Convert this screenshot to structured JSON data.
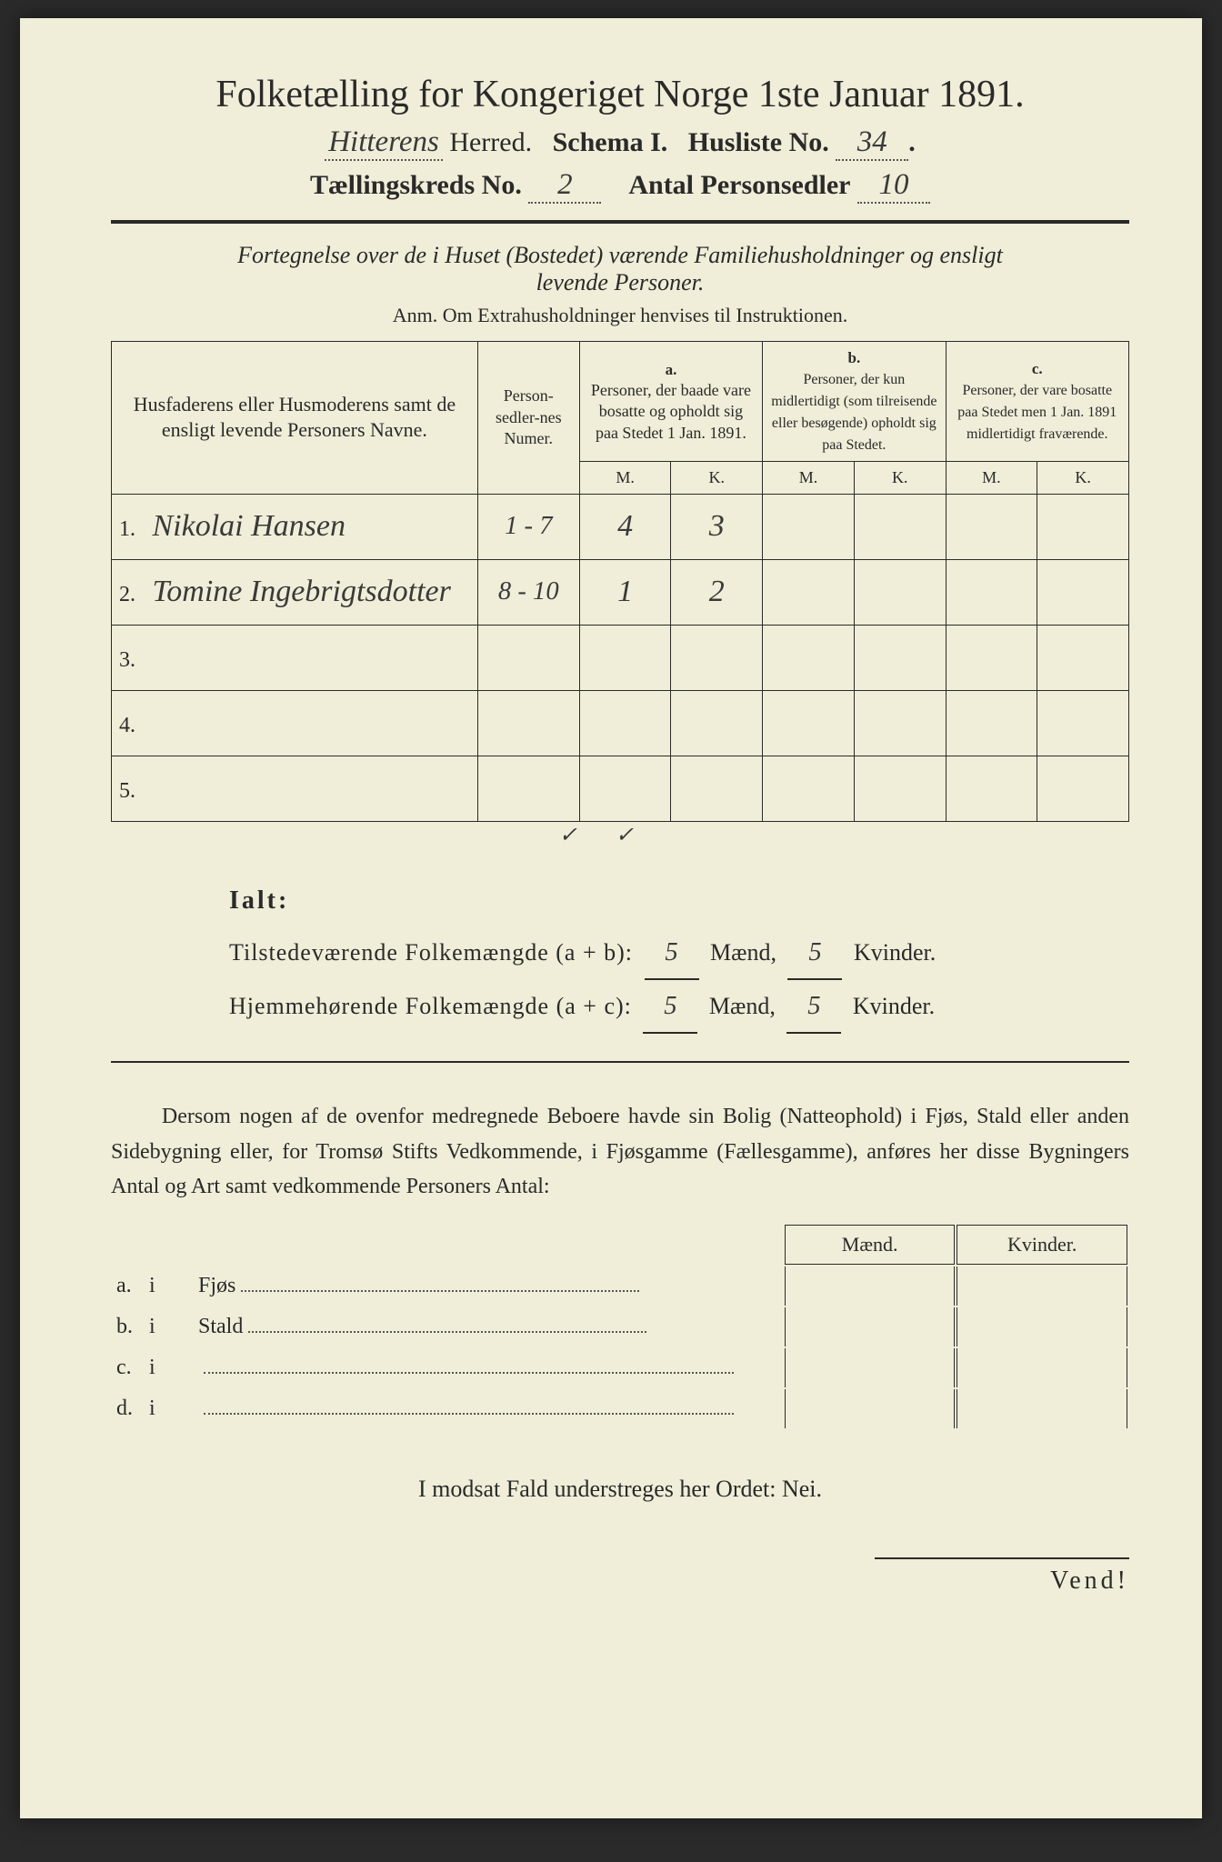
{
  "page": {
    "background_color": "#f0eed8",
    "text_color": "#2a2a2a"
  },
  "header": {
    "title": "Folketælling for Kongeriget Norge 1ste Januar 1891.",
    "herred_value": "Hitterens",
    "herred_label": "Herred.",
    "schema_label": "Schema I.",
    "husliste_label": "Husliste No.",
    "husliste_value": "34",
    "kreds_label": "Tællingskreds No.",
    "kreds_value": "2",
    "antal_label": "Antal Personsedler",
    "antal_value": "10"
  },
  "intro": {
    "line1": "Fortegnelse over de i Huset (Bostedet) værende Familiehusholdninger og ensligt",
    "line2": "levende Personer.",
    "anm": "Anm.  Om Extrahusholdninger henvises til Instruktionen."
  },
  "table": {
    "headers": {
      "names": "Husfaderens eller Husmoderens samt de ensligt levende Personers Navne.",
      "numer": "Person-sedler-nes Numer.",
      "a_letter": "a.",
      "a_text": "Personer, der baade vare bosatte og opholdt sig paa Stedet 1 Jan. 1891.",
      "b_letter": "b.",
      "b_text": "Personer, der kun midlertidigt (som tilreisende eller besøgende) opholdt sig paa Stedet.",
      "c_letter": "c.",
      "c_text": "Personer, der vare bosatte paa Stedet men 1 Jan. 1891 midlertidigt fraværende.",
      "M": "M.",
      "K": "K."
    },
    "rows": [
      {
        "n": "1.",
        "name": "Nikolai Hansen",
        "num": "1 - 7",
        "aM": "4",
        "aK": "3",
        "bM": "",
        "bK": "",
        "cM": "",
        "cK": ""
      },
      {
        "n": "2.",
        "name": "Tomine Ingebrigtsdotter",
        "num": "8 - 10",
        "aM": "1",
        "aK": "2",
        "bM": "",
        "bK": "",
        "cM": "",
        "cK": ""
      },
      {
        "n": "3.",
        "name": "",
        "num": "",
        "aM": "",
        "aK": "",
        "bM": "",
        "bK": "",
        "cM": "",
        "cK": ""
      },
      {
        "n": "4.",
        "name": "",
        "num": "",
        "aM": "",
        "aK": "",
        "bM": "",
        "bK": "",
        "cM": "",
        "cK": ""
      },
      {
        "n": "5.",
        "name": "",
        "num": "",
        "aM": "",
        "aK": "",
        "bM": "",
        "bK": "",
        "cM": "",
        "cK": ""
      }
    ],
    "footer_checks": {
      "aM": "✓",
      "aK": "✓"
    }
  },
  "totals": {
    "ialt": "Ialt:",
    "line1_label": "Tilstedeværende Folkemængde (a + b):",
    "line2_label": "Hjemmehørende Folkemængde (a + c):",
    "maend_label": "Mænd,",
    "kvinder_label": "Kvinder.",
    "line1_m": "5",
    "line1_k": "5",
    "line2_m": "5",
    "line2_k": "5"
  },
  "dersom": {
    "text": "Dersom nogen af de ovenfor medregnede Beboere havde sin Bolig (Natteophold) i Fjøs, Stald eller anden Sidebygning eller, for Tromsø Stifts Vedkommende, i Fjøsgamme (Fællesgamme), anføres her disse Bygningers Antal og Art samt vedkommende Personers Antal:",
    "maend": "Mænd.",
    "kvinder": "Kvinder.",
    "rows": [
      {
        "letter": "a.",
        "i": "i",
        "label": "Fjøs"
      },
      {
        "letter": "b.",
        "i": "i",
        "label": "Stald"
      },
      {
        "letter": "c.",
        "i": "i",
        "label": ""
      },
      {
        "letter": "d.",
        "i": "i",
        "label": ""
      }
    ]
  },
  "nei_line": "I modsat Fald understreges her Ordet: Nei.",
  "vend": "Vend!"
}
